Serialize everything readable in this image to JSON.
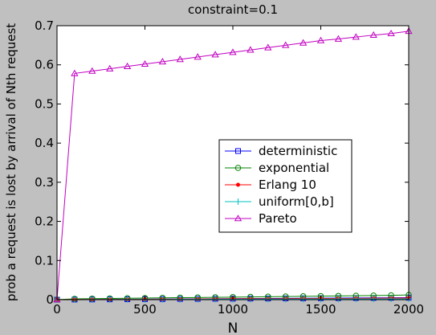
{
  "chart_data": {
    "type": "line",
    "title": "constraint=0.1",
    "xlabel": "N",
    "ylabel": "prob a request is lost by arrival of Nth request",
    "xlim": [
      0,
      2000
    ],
    "ylim": [
      0,
      0.7
    ],
    "xticks": [
      0,
      500,
      1000,
      1500,
      2000
    ],
    "yticks": [
      0,
      0.1,
      0.2,
      0.3,
      0.4,
      0.5,
      0.6,
      0.7
    ],
    "grid": false,
    "legend_position": "center-right",
    "x": [
      0,
      100,
      200,
      300,
      400,
      500,
      600,
      700,
      800,
      900,
      1000,
      1100,
      1200,
      1300,
      1400,
      1500,
      1600,
      1700,
      1800,
      1900,
      2000
    ],
    "series": [
      {
        "name": "deterministic",
        "color": "#0000ff",
        "marker": "square",
        "values": [
          0,
          0.0003,
          0.0005,
          0.0008,
          0.001,
          0.0013,
          0.0015,
          0.0018,
          0.002,
          0.0023,
          0.0025,
          0.0028,
          0.003,
          0.0033,
          0.0035,
          0.0038,
          0.004,
          0.0043,
          0.0045,
          0.0048,
          0.005
        ]
      },
      {
        "name": "exponential",
        "color": "#008000",
        "marker": "circle",
        "values": [
          0,
          0.002,
          0.0025,
          0.003,
          0.0035,
          0.004,
          0.0045,
          0.005,
          0.0055,
          0.006,
          0.0065,
          0.007,
          0.0075,
          0.008,
          0.0085,
          0.009,
          0.0095,
          0.01,
          0.0105,
          0.011,
          0.012
        ]
      },
      {
        "name": "Erlang 10",
        "color": "#ff0000",
        "marker": "point",
        "values": [
          0,
          0.0002,
          0.0004,
          0.0006,
          0.0008,
          0.001,
          0.0012,
          0.0014,
          0.0016,
          0.0018,
          0.002,
          0.0022,
          0.0024,
          0.0026,
          0.0028,
          0.003,
          0.0032,
          0.0034,
          0.0036,
          0.0038,
          0.004
        ]
      },
      {
        "name": "uniform[0,b]",
        "color": "#00c0c0",
        "marker": "plus",
        "values": [
          0,
          0.0001,
          0.0002,
          0.0003,
          0.0004,
          0.0005,
          0.0006,
          0.0007,
          0.0008,
          0.0009,
          0.001,
          0.0011,
          0.0012,
          0.0013,
          0.0014,
          0.0015,
          0.0016,
          0.0017,
          0.0018,
          0.0019,
          0.002
        ]
      },
      {
        "name": "Pareto",
        "color": "#c000c0",
        "marker": "triangle",
        "values": [
          0,
          0.578,
          0.584,
          0.59,
          0.596,
          0.602,
          0.608,
          0.614,
          0.62,
          0.626,
          0.632,
          0.638,
          0.644,
          0.65,
          0.656,
          0.662,
          0.666,
          0.671,
          0.676,
          0.68,
          0.686
        ]
      }
    ]
  }
}
